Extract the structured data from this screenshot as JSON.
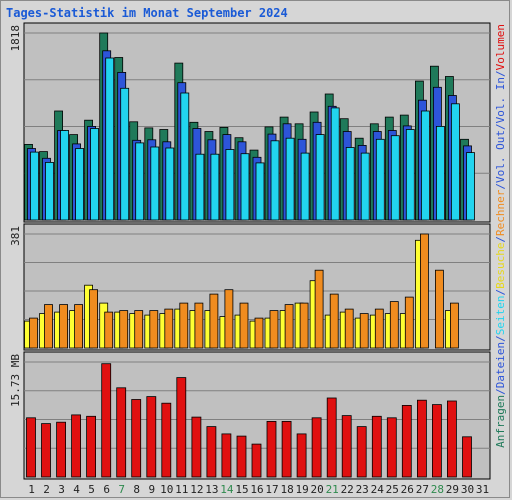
{
  "chart_data": {
    "type": "bar",
    "title": "Tages-Statistik im Monat September 2024",
    "categories": [
      "1",
      "2",
      "3",
      "4",
      "5",
      "6",
      "7",
      "8",
      "9",
      "10",
      "11",
      "12",
      "13",
      "14",
      "15",
      "16",
      "17",
      "18",
      "19",
      "20",
      "21",
      "22",
      "23",
      "24",
      "25",
      "26",
      "27",
      "28",
      "29",
      "30",
      "31"
    ],
    "weekend_days": [
      "7",
      "14",
      "21",
      "28"
    ],
    "panels": [
      {
        "id": "traffic",
        "max_label": "1818",
        "ymax": 1818,
        "series": [
          {
            "name": "Anfragen",
            "color": "#1f7a5a",
            "values": [
              735,
              665,
              1060,
              830,
              970,
              1818,
              1580,
              955,
              895,
              880,
              1525,
              950,
              860,
              900,
              800,
              680,
              905,
              1000,
              935,
              1050,
              1225,
              985,
              795,
              935,
              1000,
              1020,
              1350,
              1495,
              1395,
              785,
              0
            ]
          },
          {
            "name": "Dateien",
            "color": "#2d55d9",
            "values": [
              695,
              600,
              870,
              740,
              910,
              1645,
              1435,
              775,
              780,
              760,
              1335,
              890,
              780,
              830,
              760,
              610,
              835,
              935,
              785,
              950,
              1105,
              860,
              725,
              860,
              870,
              915,
              1165,
              1290,
              1210,
              720,
              0
            ]
          },
          {
            "name": "Seiten",
            "color": "#22d4ef",
            "values": [
              660,
              560,
              870,
              695,
              890,
              1575,
              1280,
              750,
              710,
              700,
              1235,
              640,
              640,
              685,
              645,
              555,
              770,
              795,
              650,
              830,
              1090,
              705,
              650,
              785,
              820,
              880,
              1060,
              910,
              1130,
              655,
              0
            ]
          }
        ]
      },
      {
        "id": "visits",
        "max_label": "381",
        "ymax": 381,
        "series": [
          {
            "name": "Besuche",
            "color": "#ffff33",
            "values": [
              90,
              115,
              120,
              125,
              210,
              150,
              120,
              115,
              110,
              115,
              130,
              125,
              125,
              105,
              110,
              90,
              100,
              125,
              150,
              225,
              110,
              120,
              100,
              110,
              115,
              115,
              360,
              0,
              125,
              0,
              0
            ]
          },
          {
            "name": "Rechner",
            "color": "#f08c1f",
            "values": [
              100,
              145,
              145,
              145,
              195,
              120,
              125,
              125,
              125,
              130,
              150,
              150,
              180,
              195,
              150,
              100,
              125,
              145,
              150,
              260,
              180,
              130,
              115,
              130,
              155,
              170,
              381,
              260,
              150,
              0,
              0
            ]
          }
        ]
      },
      {
        "id": "volume",
        "max_label": "15.73 MB",
        "ymax": 15.73,
        "series": [
          {
            "name": "Volumen",
            "color": "#e01010",
            "values": [
              8.1,
              7.3,
              7.5,
              8.5,
              8.3,
              15.5,
              12.2,
              10.6,
              11.0,
              10.1,
              13.6,
              8.2,
              6.9,
              5.9,
              5.6,
              4.5,
              7.6,
              7.6,
              5.9,
              8.1,
              10.8,
              8.4,
              6.9,
              8.3,
              8.1,
              9.8,
              10.5,
              9.9,
              10.4,
              5.5,
              0
            ]
          }
        ]
      }
    ],
    "right_label": [
      {
        "text": "Anfragen",
        "color": "#1f7a5a"
      },
      {
        "text": "/",
        "color": "#2d55d9"
      },
      {
        "text": "Dateien",
        "color": "#2d55d9"
      },
      {
        "text": "/",
        "color": "#2d55d9"
      },
      {
        "text": "Seiten",
        "color": "#22d4ef"
      },
      {
        "text": "/",
        "color": "#2d55d9"
      },
      {
        "text": "Besuche",
        "color": "#e6d81c"
      },
      {
        "text": "/",
        "color": "#2d55d9"
      },
      {
        "text": "Rechner",
        "color": "#f08c1f"
      },
      {
        "text": "/",
        "color": "#2d55d9"
      },
      {
        "text": "Vol. Out",
        "color": "#2d55d9"
      },
      {
        "text": "/",
        "color": "#2d55d9"
      },
      {
        "text": "Vol. In",
        "color": "#2d55d9"
      },
      {
        "text": "/",
        "color": "#2d55d9"
      },
      {
        "text": "Volumen",
        "color": "#e01010"
      }
    ],
    "colors": {
      "plot_bg": "#c0c0c0",
      "grid": "#808080",
      "weekday_label": "#222222",
      "weekend_label": "#2e8a4e",
      "axis_label": "#222222"
    }
  }
}
